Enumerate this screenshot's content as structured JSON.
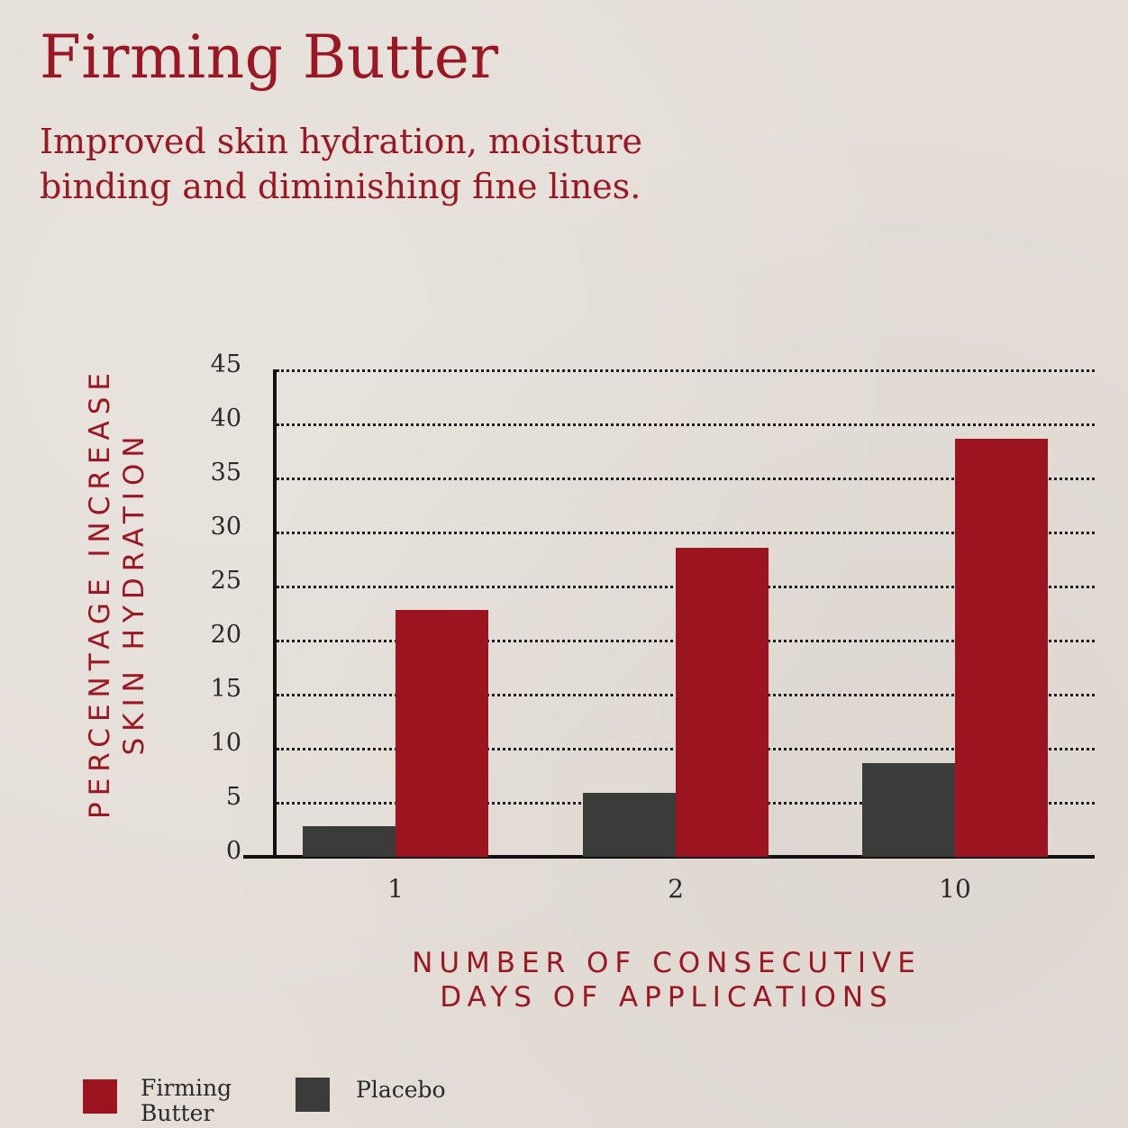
{
  "header": {
    "title": "Firming Butter",
    "subtitle_line1": "Improved skin hydration, moisture",
    "subtitle_line2": "binding and diminishing fine lines."
  },
  "axes": {
    "ylabel_line1": "PERCENTAGE INCREASE",
    "ylabel_line2": "SKIN HYDRATION",
    "xlabel_line1": "NUMBER OF CONSECUTIVE",
    "xlabel_line2": "DAYS OF APPLICATIONS",
    "yticks": [
      "45",
      "40",
      "35",
      "30",
      "25",
      "20",
      "15",
      "10",
      "5",
      "0"
    ],
    "xticks": [
      "1",
      "2",
      "10"
    ]
  },
  "legend": {
    "items": [
      {
        "label_line1": "Firming",
        "label_line2": "Butter",
        "color": "#9b1420"
      },
      {
        "label_line1": "Placebo",
        "label_line2": "",
        "color": "#3b3b39"
      }
    ]
  },
  "colors": {
    "accent": "#9b1723",
    "firming_butter": "#9b1420",
    "placebo": "#3b3b39",
    "background": "#e4ded7"
  },
  "chart_data": {
    "type": "bar",
    "title": "Firming Butter",
    "subtitle": "Improved skin hydration, moisture binding and diminishing fine lines.",
    "xlabel": "Number of consecutive days of applications",
    "ylabel": "Percentage increase skin hydration",
    "categories": [
      "1",
      "2",
      "10"
    ],
    "series": [
      {
        "name": "Placebo",
        "values": [
          2.8,
          5.9,
          8.7
        ],
        "color": "#3b3b39"
      },
      {
        "name": "Firming Butter",
        "values": [
          22.8,
          28.6,
          38.7
        ],
        "color": "#9b1420"
      }
    ],
    "ylim": [
      0,
      45
    ],
    "yticks": [
      0,
      5,
      10,
      15,
      20,
      25,
      30,
      35,
      40,
      45
    ],
    "grid": "horizontal dotted",
    "legend_position": "bottom-left"
  }
}
